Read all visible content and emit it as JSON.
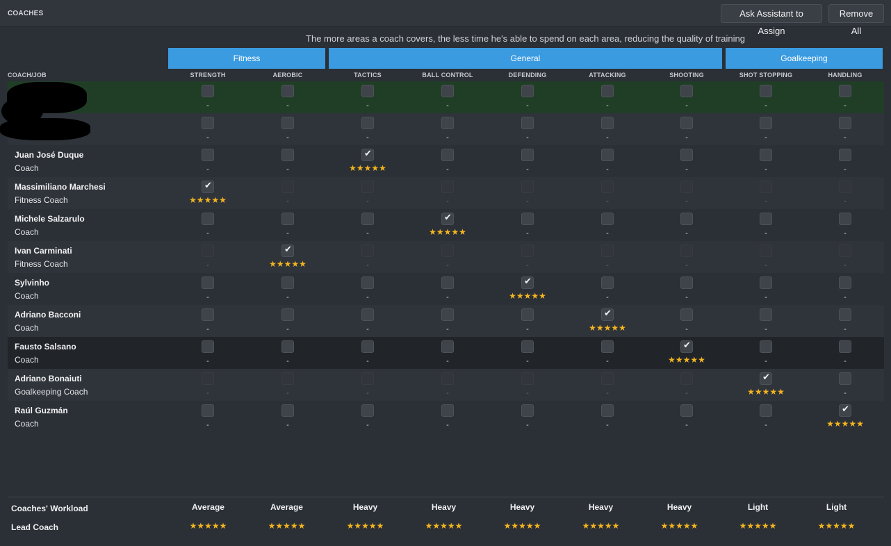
{
  "header": {
    "title": "COACHES",
    "assist_button": "Ask Assistant to Assign",
    "remove_button": "Remove All"
  },
  "notice": "The more areas a coach covers, the less time he's able to spend on each area, reducing the quality of training",
  "groups": [
    {
      "label": "Fitness"
    },
    {
      "label": "General"
    },
    {
      "label": "Goalkeeping"
    }
  ],
  "coach_job_header": "COACH/JOB",
  "columns": [
    "STRENGTH",
    "AEROBIC",
    "TACTICS",
    "BALL CONTROL",
    "DEFENDING",
    "ATTACKING",
    "SHOOTING",
    "SHOT STOPPING",
    "HANDLING"
  ],
  "dash": "-",
  "stars_glyph": "★★★★★",
  "rows": [
    {
      "name": "",
      "role": "",
      "checked": -1,
      "dim": false
    },
    {
      "name": "",
      "role": "",
      "checked": -1,
      "dim": false
    },
    {
      "name": "Juan José Duque",
      "role": "Coach",
      "checked": 2,
      "dim": false
    },
    {
      "name": "Massimiliano Marchesi",
      "role": "Fitness Coach",
      "checked": 0,
      "dim": true
    },
    {
      "name": "Michele Salzarulo",
      "role": "Coach",
      "checked": 3,
      "dim": false
    },
    {
      "name": "Ivan Carminati",
      "role": "Fitness Coach",
      "checked": 1,
      "dim": true
    },
    {
      "name": "Sylvinho",
      "role": "Coach",
      "checked": 4,
      "dim": false
    },
    {
      "name": "Adriano Bacconi",
      "role": "Coach",
      "checked": 5,
      "dim": false
    },
    {
      "name": "Fausto Salsano",
      "role": "Coach",
      "checked": 6,
      "dim": false
    },
    {
      "name": "Adriano Bonaiuti",
      "role": "Goalkeeping Coach",
      "checked": 7,
      "dim": true
    },
    {
      "name": "Raúl Guzmán",
      "role": "Coach",
      "checked": 8,
      "dim": false
    }
  ],
  "footer": {
    "workload_label": "Coaches' Workload",
    "lead_label": "Lead Coach",
    "workload": [
      "Average",
      "Average",
      "Heavy",
      "Heavy",
      "Heavy",
      "Heavy",
      "Heavy",
      "Light",
      "Light"
    ]
  },
  "colors": {
    "accent": "#3a9be1",
    "star": "#f2b51f",
    "highlight_row": "#203e26"
  }
}
